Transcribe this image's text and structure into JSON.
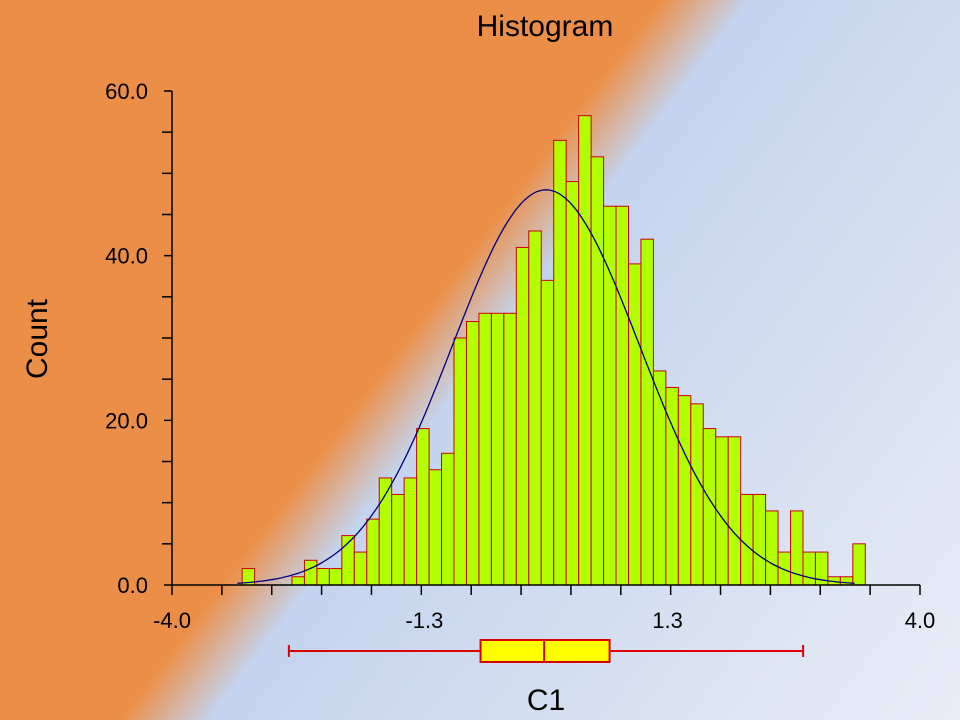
{
  "chart_data": {
    "type": "bar",
    "title": "Histogram",
    "xlabel": "C1",
    "ylabel": "Count",
    "xlim": [
      -4.0,
      4.0
    ],
    "ylim": [
      0,
      60
    ],
    "x_ticks": [
      "-4.0",
      "-1.3",
      "1.3",
      "4.0"
    ],
    "y_ticks": [
      "0.0",
      "20.0",
      "40.0",
      "60.0"
    ],
    "bin_width": 0.1333,
    "bins_start": -3.25,
    "values": [
      2,
      0,
      0,
      0,
      1,
      3,
      2,
      2,
      6,
      4,
      8,
      13,
      11,
      13,
      19,
      14,
      16,
      30,
      32,
      33,
      33,
      33,
      41,
      43,
      37,
      54,
      49,
      57,
      52,
      46,
      46,
      39,
      42,
      26,
      24,
      23,
      22,
      19,
      18,
      18,
      11,
      11,
      9,
      4,
      9,
      4,
      4,
      1,
      1,
      5
    ],
    "normal_curve": {
      "mean": 0.0,
      "sd": 1.0,
      "peak": 48
    },
    "boxplot": {
      "min": -2.75,
      "q1": -0.7,
      "median": -0.02,
      "q3": 0.68,
      "max": 2.75
    },
    "grid": false,
    "colors": {
      "bar_fill": "#b2ff00",
      "bar_stroke": "#cc0000",
      "curve": "#000080",
      "box_fill": "#ffff00",
      "box_stroke": "#dd0000",
      "bg_orange": "#eb8f48",
      "bg_blue": "#c4d4ee"
    }
  }
}
